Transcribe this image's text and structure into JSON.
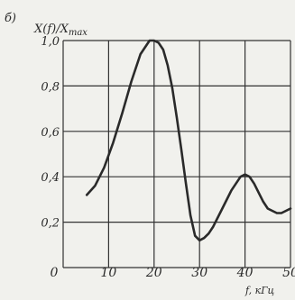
{
  "chart_data": {
    "type": "line",
    "panel_label": "б)",
    "ylabel": "X(f)/X",
    "ylabel_sub": "max",
    "xlabel": "f, кГц",
    "x_ticks": [
      0,
      10,
      20,
      30,
      40,
      50
    ],
    "x_tick_labels": [
      "0",
      "10",
      "20",
      "30",
      "40",
      "50"
    ],
    "y_ticks": [
      0.2,
      0.4,
      0.6,
      0.8,
      1.0
    ],
    "y_tick_labels": [
      "0,2",
      "0,4",
      "0,6",
      "0,8",
      "1,0"
    ],
    "xlim": [
      0,
      50
    ],
    "ylim": [
      0,
      1.0
    ],
    "grid": true,
    "series": [
      {
        "x": [
          5.2,
          7,
          9,
          11,
          13,
          15,
          17,
          19,
          20,
          21,
          22,
          23,
          24,
          25,
          26,
          27,
          28,
          29,
          30,
          31,
          32,
          33,
          35,
          37,
          39,
          40,
          41,
          42,
          43,
          44,
          45,
          46,
          47,
          48,
          49,
          50
        ],
        "y": [
          0.32,
          0.36,
          0.44,
          0.55,
          0.68,
          0.82,
          0.94,
          1.0,
          1.0,
          0.99,
          0.96,
          0.89,
          0.79,
          0.66,
          0.52,
          0.37,
          0.23,
          0.14,
          0.12,
          0.13,
          0.15,
          0.18,
          0.26,
          0.34,
          0.4,
          0.41,
          0.4,
          0.37,
          0.33,
          0.29,
          0.26,
          0.25,
          0.24,
          0.24,
          0.25,
          0.26
        ],
        "color": "#2a2a2a"
      }
    ]
  }
}
